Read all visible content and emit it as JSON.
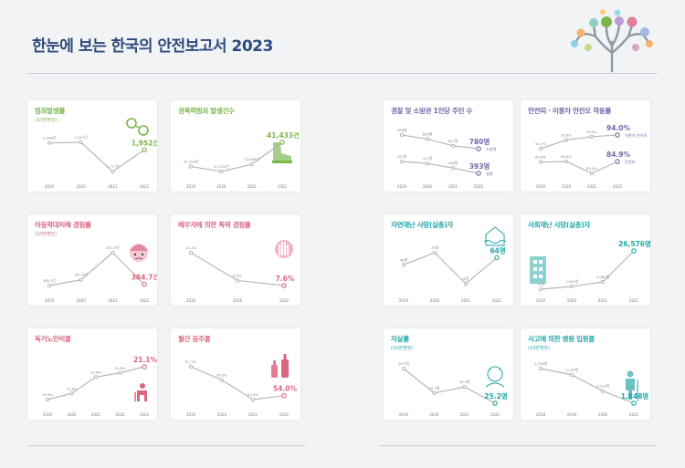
{
  "page": {
    "title": "한눈에 보는 한국의 안전보고서 2023"
  },
  "colors": {
    "green": "#7ab648",
    "pink": "#d9677f",
    "purple": "#7466a8",
    "teal": "#22a5a8",
    "line": "#b8b8b8",
    "title": "#2d4a7e"
  },
  "charts": [
    {
      "id": "crime",
      "title": "범죄발생률",
      "subtitle": "(10만명당)",
      "color": "#7ab648",
      "icon": "handcuffs-icon",
      "chart_data": {
        "type": "line",
        "categories": [
          "2019",
          "2020",
          "2021",
          "2022"
        ],
        "series": [
          {
            "values": [
              2008,
              2013,
              1777,
              1952
            ],
            "labels": [
              "2,008건",
              "2,013건",
              "1,777건",
              "1,952건"
            ]
          }
        ]
      }
    },
    {
      "id": "sexcrime",
      "title": "성폭력범죄 발생건수",
      "subtitle": "",
      "color": "#7ab648",
      "icon": "boot-icon",
      "chart_data": {
        "type": "line",
        "categories": [
          "2019",
          "2020",
          "2021",
          "2022"
        ],
        "series": [
          {
            "values": [
              32029,
              30105,
              32898,
              41433
            ],
            "labels": [
              "32,029건",
              "30,105건",
              "32,898건",
              "41,433건"
            ]
          }
        ]
      }
    },
    {
      "id": "childabuse",
      "title": "아동학대피해 경험률",
      "subtitle": "(10만명당)",
      "color": "#d9677f",
      "icon": "crying-child-icon",
      "chart_data": {
        "type": "line",
        "categories": [
          "2019",
          "2020",
          "2021",
          "2022"
        ],
        "series": [
          {
            "values": [
              380.3,
              401.6,
              501.9,
              384.7
            ],
            "labels": [
              "380.3건",
              "401.6건",
              "501.9건",
              "384.7건"
            ]
          }
        ]
      }
    },
    {
      "id": "spouse",
      "title": "배우자에 의한 폭력 경험률",
      "subtitle": "",
      "color": "#d9677f",
      "icon": "stop-hand-icon",
      "chart_data": {
        "type": "line",
        "categories": [
          "2016",
          "2019",
          "2022"
        ],
        "series": [
          {
            "values": [
              14.1,
              8.6,
              7.6
            ],
            "labels": [
              "14.1%",
              "8.6%",
              "7.6%"
            ]
          }
        ]
      }
    },
    {
      "id": "elderly",
      "title": "독거노인비율",
      "subtitle": "",
      "color": "#d9677f",
      "icon": "elderly-person-icon",
      "chart_data": {
        "type": "line",
        "categories": [
          "2019",
          "2020",
          "2021",
          "2022",
          "2023"
        ],
        "series": [
          {
            "values": [
              19.5,
              19.8,
              20.6,
              20.8,
              21.1
            ],
            "labels": [
              "19.5%",
              "19.8%",
              "20.6%",
              "20.8%",
              "21.1%"
            ]
          }
        ]
      }
    },
    {
      "id": "drinking",
      "title": "월간 음주율",
      "subtitle": "",
      "color": "#d9677f",
      "icon": "bottles-icon",
      "chart_data": {
        "type": "line",
        "categories": [
          "2019",
          "2020",
          "2021",
          "2022"
        ],
        "series": [
          {
            "values": [
              57.7,
              56.0,
              53.5,
              54.0
            ],
            "labels": [
              "57.7%",
              "56.0%",
              "53.5%",
              "54.0%"
            ]
          }
        ]
      }
    },
    {
      "id": "police",
      "title": "경찰 및 소방관 1인당 주민 수",
      "subtitle": "",
      "color": "#7466a8",
      "icon": "",
      "chart_data": {
        "type": "line",
        "categories": [
          "2019",
          "2020",
          "2021",
          "2022"
        ],
        "series": [
          {
            "name": "소방관",
            "values": [
              906,
              869,
              807,
              780
            ],
            "labels": [
              "906명",
              "869명",
              "807명",
              "780명"
            ]
          },
          {
            "name": "경찰",
            "values": [
              422,
              417,
              406,
              393
            ],
            "labels": [
              "422명",
              "417명",
              "406명",
              "393명"
            ]
          }
        ]
      }
    },
    {
      "id": "seatbelt",
      "title": "안전띠 · 이륜차 안전모 착용률",
      "subtitle": "",
      "color": "#7466a8",
      "icon": "",
      "chart_data": {
        "type": "line",
        "categories": [
          "2019",
          "2020",
          "2021",
          "2022"
        ],
        "series": [
          {
            "name": "이륜차 안전모",
            "values": [
              90.7,
              92.8,
              93.6,
              94.0
            ],
            "labels": [
              "90.7%",
              "92.8%",
              "93.6%",
              "94.0%"
            ]
          },
          {
            "name": "안전띠",
            "values": [
              84.8,
              84.9,
              83.0,
              84.9
            ],
            "labels": [
              "84.8%",
              "84.9%",
              "83.0%",
              "84.9%"
            ]
          }
        ]
      }
    },
    {
      "id": "naturaldisaster",
      "title": "자연재난 사망(실종)자",
      "subtitle": "",
      "color": "#22a5a8",
      "icon": "flooded-house-icon",
      "chart_data": {
        "type": "line",
        "categories": [
          "2019",
          "2020",
          "2021",
          "2022"
        ],
        "series": [
          {
            "values": [
              48,
              75,
              6,
              64
            ],
            "labels": [
              "48명",
              "75명",
              "6명",
              "64명"
            ]
          }
        ]
      }
    },
    {
      "id": "socialdisaster",
      "title": "사회재난 사망(실종)자",
      "subtitle": "",
      "color": "#22a5a8",
      "icon": "building-icon",
      "chart_data": {
        "type": "line",
        "categories": [
          "2019",
          "2020",
          "2021",
          "2022"
        ],
        "series": [
          {
            "values": [
              33,
              1909,
              5080,
              26576
            ],
            "labels": [
              "33명",
              "1,909명",
              "5,080명",
              "26,576명"
            ]
          }
        ]
      }
    },
    {
      "id": "suicide",
      "title": "자살률",
      "subtitle": "(10만명당)",
      "color": "#22a5a8",
      "icon": "distressed-person-icon",
      "chart_data": {
        "type": "line",
        "categories": [
          "2019",
          "2020",
          "2021",
          "2022"
        ],
        "series": [
          {
            "values": [
              26.9,
              25.7,
              26.0,
              25.2
            ],
            "labels": [
              "26.9명",
              "25.7명",
              "26.0명",
              "25.2명"
            ]
          }
        ]
      }
    },
    {
      "id": "hospital",
      "title": "사고에 의한 병원 입원율",
      "subtitle": "(10만명당)",
      "color": "#22a5a8",
      "icon": "crutch-person-icon",
      "chart_data": {
        "type": "line",
        "categories": [
          "2018",
          "2019",
          "2020",
          "2021"
        ],
        "series": [
          {
            "values": [
              2318,
              2233,
              2014,
              1848
            ],
            "labels": [
              "2,318명",
              "2,233명",
              "2,014명",
              "1,848명"
            ]
          }
        ]
      }
    }
  ]
}
